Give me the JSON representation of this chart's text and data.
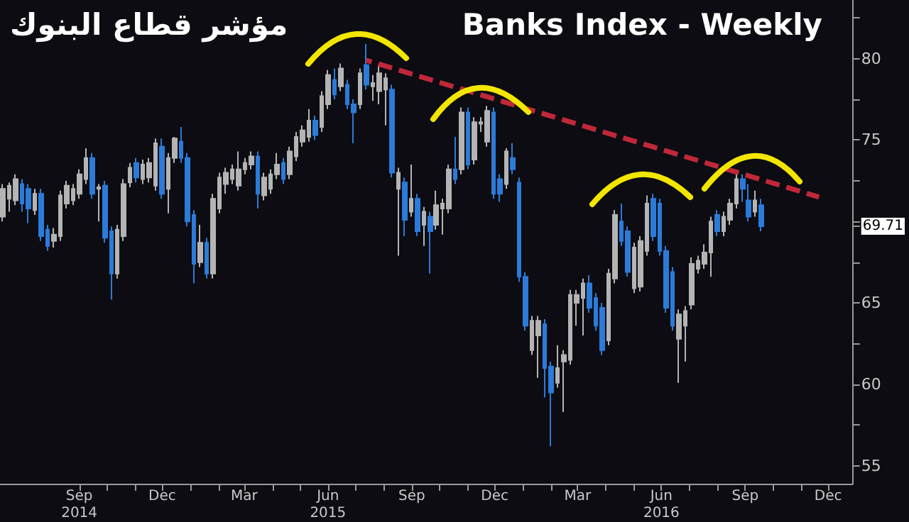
{
  "chart_data": {
    "type": "candlestick",
    "title": "Banks Index - Weekly",
    "subtitle": "مؤشر قطاع البنوك",
    "x": [
      "2014-06-09",
      "2014-06-16",
      "2014-06-23",
      "2014-06-30",
      "2014-07-07",
      "2014-07-14",
      "2014-07-21",
      "2014-07-28",
      "2014-08-04",
      "2014-08-11",
      "2014-08-18",
      "2014-08-25",
      "2014-09-01",
      "2014-09-08",
      "2014-09-15",
      "2014-09-22",
      "2014-09-29",
      "2014-10-06",
      "2014-10-13",
      "2014-10-20",
      "2014-10-27",
      "2014-11-03",
      "2014-11-10",
      "2014-11-17",
      "2014-11-24",
      "2014-12-01",
      "2014-12-08",
      "2014-12-15",
      "2014-12-22",
      "2014-12-29",
      "2015-01-05",
      "2015-01-12",
      "2015-01-19",
      "2015-01-26",
      "2015-02-02",
      "2015-02-09",
      "2015-02-16",
      "2015-02-23",
      "2015-03-02",
      "2015-03-09",
      "2015-03-16",
      "2015-03-23",
      "2015-03-30",
      "2015-04-06",
      "2015-04-13",
      "2015-04-20",
      "2015-04-27",
      "2015-05-04",
      "2015-05-11",
      "2015-05-18",
      "2015-05-25",
      "2015-06-01",
      "2015-06-08",
      "2015-06-15",
      "2015-06-22",
      "2015-06-29",
      "2015-07-06",
      "2015-07-13",
      "2015-07-20",
      "2015-07-27",
      "2015-08-03",
      "2015-08-10",
      "2015-08-17",
      "2015-08-24",
      "2015-08-31",
      "2015-09-07",
      "2015-09-14",
      "2015-09-21",
      "2015-09-28",
      "2015-10-05",
      "2015-10-12",
      "2015-10-19",
      "2015-10-26",
      "2015-11-02",
      "2015-11-09",
      "2015-11-16",
      "2015-11-23",
      "2015-11-30",
      "2015-12-07",
      "2015-12-14",
      "2015-12-21",
      "2015-12-28",
      "2016-01-04",
      "2016-01-11",
      "2016-01-18",
      "2016-01-25",
      "2016-02-01",
      "2016-02-08",
      "2016-02-15",
      "2016-02-22",
      "2016-02-29",
      "2016-03-07",
      "2016-03-14",
      "2016-03-21",
      "2016-03-28",
      "2016-04-04",
      "2016-04-11",
      "2016-04-18",
      "2016-04-25",
      "2016-05-02",
      "2016-05-09",
      "2016-05-16",
      "2016-05-23",
      "2016-05-30",
      "2016-06-06",
      "2016-06-13",
      "2016-06-20",
      "2016-06-27",
      "2016-07-04",
      "2016-07-11",
      "2016-07-18",
      "2016-07-25",
      "2016-08-01",
      "2016-08-08",
      "2016-08-15",
      "2016-08-22",
      "2016-08-29",
      "2016-09-05",
      "2016-09-12",
      "2016-09-19"
    ],
    "ohlc": [
      [
        70.3,
        72.3,
        70.0,
        72.0
      ],
      [
        71.4,
        72.4,
        70.6,
        72.2
      ],
      [
        71.3,
        72.9,
        71.0,
        72.6
      ],
      [
        72.3,
        72.6,
        70.6,
        71.1
      ],
      [
        72.0,
        72.3,
        69.9,
        70.8
      ],
      [
        70.7,
        72.0,
        70.4,
        71.7
      ],
      [
        71.7,
        72.0,
        68.8,
        69.1
      ],
      [
        69.5,
        69.8,
        68.2,
        68.5
      ],
      [
        68.8,
        69.6,
        68.4,
        69.2
      ],
      [
        69.1,
        71.9,
        68.8,
        71.6
      ],
      [
        71.1,
        72.5,
        70.8,
        72.2
      ],
      [
        71.3,
        72.3,
        71.0,
        72.0
      ],
      [
        71.7,
        73.2,
        71.4,
        72.9
      ],
      [
        72.6,
        74.5,
        72.3,
        73.9
      ],
      [
        73.9,
        74.2,
        71.4,
        71.7
      ],
      [
        72.0,
        72.3,
        70.0,
        72.1
      ],
      [
        72.2,
        72.5,
        68.7,
        69.0
      ],
      [
        69.4,
        69.7,
        65.2,
        66.8
      ],
      [
        66.8,
        69.8,
        66.5,
        69.5
      ],
      [
        69.1,
        72.6,
        68.8,
        72.3
      ],
      [
        72.4,
        73.6,
        72.1,
        73.3
      ],
      [
        73.6,
        73.9,
        72.4,
        72.7
      ],
      [
        72.6,
        73.8,
        72.3,
        73.5
      ],
      [
        72.7,
        73.9,
        72.4,
        73.6
      ],
      [
        72.2,
        75.1,
        71.9,
        74.8
      ],
      [
        74.6,
        75.1,
        71.4,
        71.7
      ],
      [
        72.0,
        74.2,
        70.5,
        73.9
      ],
      [
        73.9,
        75.2,
        73.6,
        75.1
      ],
      [
        74.9,
        75.8,
        73.6,
        73.9
      ],
      [
        73.9,
        74.2,
        69.7,
        70.0
      ],
      [
        70.4,
        70.7,
        66.2,
        67.4
      ],
      [
        67.5,
        69.8,
        67.2,
        68.7
      ],
      [
        68.7,
        69.0,
        66.5,
        66.8
      ],
      [
        66.8,
        71.7,
        66.5,
        71.4
      ],
      [
        70.8,
        73.0,
        70.5,
        72.7
      ],
      [
        72.3,
        73.3,
        71.7,
        73.0
      ],
      [
        72.6,
        73.5,
        72.3,
        73.2
      ],
      [
        72.2,
        74.3,
        71.9,
        73.2
      ],
      [
        73.2,
        73.9,
        72.9,
        73.6
      ],
      [
        73.5,
        74.3,
        73.2,
        74.0
      ],
      [
        74.0,
        74.3,
        70.8,
        71.7
      ],
      [
        71.6,
        73.0,
        71.3,
        72.7
      ],
      [
        72.0,
        73.2,
        71.7,
        72.9
      ],
      [
        72.9,
        74.2,
        72.6,
        73.5
      ],
      [
        73.6,
        73.9,
        72.3,
        72.6
      ],
      [
        72.9,
        74.6,
        72.6,
        74.3
      ],
      [
        74.0,
        75.5,
        73.7,
        75.2
      ],
      [
        74.9,
        75.9,
        74.6,
        75.6
      ],
      [
        75.2,
        76.9,
        74.9,
        76.2
      ],
      [
        76.2,
        76.5,
        75.0,
        75.3
      ],
      [
        75.8,
        78.0,
        75.5,
        77.7
      ],
      [
        77.2,
        79.3,
        76.9,
        79.0
      ],
      [
        78.7,
        79.4,
        77.5,
        77.8
      ],
      [
        78.3,
        79.7,
        78.0,
        79.4
      ],
      [
        78.4,
        78.7,
        76.9,
        77.2
      ],
      [
        77.2,
        77.5,
        74.8,
        76.7
      ],
      [
        77.2,
        79.4,
        76.9,
        79.1
      ],
      [
        79.6,
        80.9,
        78.1,
        78.4
      ],
      [
        78.3,
        79.0,
        77.4,
        78.5
      ],
      [
        78.0,
        79.6,
        77.2,
        79.1
      ],
      [
        78.1,
        79.1,
        75.9,
        78.8
      ],
      [
        78.1,
        78.4,
        72.7,
        73.0
      ],
      [
        72.0,
        73.3,
        67.9,
        73.0
      ],
      [
        72.4,
        72.7,
        69.1,
        70.1
      ],
      [
        70.6,
        73.5,
        70.3,
        71.4
      ],
      [
        71.4,
        71.7,
        69.1,
        69.4
      ],
      [
        69.8,
        70.9,
        68.5,
        70.6
      ],
      [
        70.3,
        70.6,
        66.8,
        69.4
      ],
      [
        69.8,
        71.9,
        69.5,
        71.0
      ],
      [
        70.8,
        71.4,
        69.2,
        71.1
      ],
      [
        70.8,
        73.5,
        70.5,
        73.2
      ],
      [
        73.2,
        75.2,
        72.3,
        72.6
      ],
      [
        73.2,
        77.0,
        72.9,
        76.7
      ],
      [
        76.7,
        77.0,
        73.2,
        73.5
      ],
      [
        73.8,
        76.4,
        73.5,
        76.1
      ],
      [
        76.0,
        76.4,
        75.5,
        76.1
      ],
      [
        74.9,
        77.1,
        74.6,
        76.8
      ],
      [
        76.7,
        77.0,
        71.4,
        71.7
      ],
      [
        72.6,
        72.9,
        71.2,
        71.7
      ],
      [
        72.3,
        74.5,
        72.0,
        74.3
      ],
      [
        73.9,
        74.8,
        72.9,
        73.2
      ],
      [
        72.4,
        72.7,
        66.3,
        66.6
      ],
      [
        66.6,
        66.9,
        63.3,
        63.6
      ],
      [
        62.1,
        64.2,
        61.8,
        63.9
      ],
      [
        63.0,
        64.2,
        60.4,
        63.9
      ],
      [
        63.7,
        64.0,
        59.2,
        61.0
      ],
      [
        61.1,
        61.4,
        56.2,
        59.5
      ],
      [
        60.1,
        62.4,
        59.8,
        61.0
      ],
      [
        61.4,
        62.1,
        58.3,
        61.8
      ],
      [
        61.5,
        65.8,
        61.2,
        65.5
      ],
      [
        65.0,
        65.8,
        63.6,
        65.5
      ],
      [
        65.3,
        66.5,
        63.0,
        66.2
      ],
      [
        66.2,
        66.7,
        64.4,
        64.7
      ],
      [
        65.3,
        65.6,
        63.3,
        63.6
      ],
      [
        64.7,
        65.0,
        61.8,
        62.1
      ],
      [
        62.7,
        67.1,
        62.4,
        66.8
      ],
      [
        66.5,
        70.7,
        66.2,
        70.4
      ],
      [
        70.0,
        71.1,
        68.5,
        68.8
      ],
      [
        69.4,
        69.7,
        66.6,
        66.9
      ],
      [
        65.9,
        68.7,
        65.6,
        68.4
      ],
      [
        66.0,
        69.1,
        65.7,
        68.8
      ],
      [
        68.2,
        71.6,
        67.9,
        71.1
      ],
      [
        71.4,
        71.7,
        68.8,
        69.1
      ],
      [
        71.1,
        71.4,
        67.9,
        68.2
      ],
      [
        68.2,
        68.5,
        64.4,
        64.7
      ],
      [
        66.9,
        67.2,
        63.3,
        63.6
      ],
      [
        62.8,
        64.6,
        60.1,
        64.3
      ],
      [
        63.6,
        64.8,
        61.4,
        64.5
      ],
      [
        64.9,
        67.8,
        64.6,
        67.4
      ],
      [
        67.1,
        67.9,
        66.8,
        67.6
      ],
      [
        67.4,
        68.6,
        67.1,
        68.1
      ],
      [
        68.1,
        70.3,
        66.6,
        70.0
      ],
      [
        70.4,
        70.7,
        69.1,
        69.4
      ],
      [
        69.4,
        70.6,
        69.1,
        70.3
      ],
      [
        70.1,
        71.4,
        69.8,
        71.1
      ],
      [
        71.1,
        72.9,
        70.8,
        72.6
      ],
      [
        72.6,
        72.9,
        71.2,
        72.0
      ],
      [
        71.3,
        72.3,
        70.0,
        70.3
      ],
      [
        70.6,
        71.9,
        70.3,
        71.3
      ],
      [
        71.0,
        71.4,
        69.4,
        69.71
      ]
    ],
    "colors": [
      "#b4b4b4",
      "#b4b4b4",
      "#b4b4b4",
      "#2b7bd9",
      "#2b7bd9",
      "#b4b4b4",
      "#2b7bd9",
      "#2b7bd9",
      "#b4b4b4",
      "#b4b4b4",
      "#b4b4b4",
      "#b4b4b4",
      "#b4b4b4",
      "#b4b4b4",
      "#2b7bd9",
      "#b4b4b4",
      "#2b7bd9",
      "#2b7bd9",
      "#b4b4b4",
      "#b4b4b4",
      "#b4b4b4",
      "#2b7bd9",
      "#b4b4b4",
      "#b4b4b4",
      "#b4b4b4",
      "#2b7bd9",
      "#b4b4b4",
      "#b4b4b4",
      "#2b7bd9",
      "#2b7bd9",
      "#2b7bd9",
      "#b4b4b4",
      "#2b7bd9",
      "#b4b4b4",
      "#b4b4b4",
      "#b4b4b4",
      "#b4b4b4",
      "#b4b4b4",
      "#b4b4b4",
      "#b4b4b4",
      "#2b7bd9",
      "#b4b4b4",
      "#b4b4b4",
      "#b4b4b4",
      "#2b7bd9",
      "#b4b4b4",
      "#b4b4b4",
      "#b4b4b4",
      "#b4b4b4",
      "#2b7bd9",
      "#b4b4b4",
      "#b4b4b4",
      "#2b7bd9",
      "#b4b4b4",
      "#2b7bd9",
      "#2b7bd9",
      "#b4b4b4",
      "#2b7bd9",
      "#b4b4b4",
      "#b4b4b4",
      "#b4b4b4",
      "#2b7bd9",
      "#b4b4b4",
      "#2b7bd9",
      "#b4b4b4",
      "#2b7bd9",
      "#b4b4b4",
      "#2b7bd9",
      "#b4b4b4",
      "#b4b4b4",
      "#b4b4b4",
      "#2b7bd9",
      "#b4b4b4",
      "#2b7bd9",
      "#b4b4b4",
      "#b4b4b4",
      "#b4b4b4",
      "#2b7bd9",
      "#2b7bd9",
      "#b4b4b4",
      "#2b7bd9",
      "#2b7bd9",
      "#2b7bd9",
      "#b4b4b4",
      "#b4b4b4",
      "#2b7bd9",
      "#2b7bd9",
      "#b4b4b4",
      "#b4b4b4",
      "#b4b4b4",
      "#b4b4b4",
      "#b4b4b4",
      "#2b7bd9",
      "#2b7bd9",
      "#2b7bd9",
      "#b4b4b4",
      "#b4b4b4",
      "#2b7bd9",
      "#2b7bd9",
      "#b4b4b4",
      "#b4b4b4",
      "#b4b4b4",
      "#2b7bd9",
      "#2b7bd9",
      "#2b7bd9",
      "#2b7bd9",
      "#b4b4b4",
      "#b4b4b4",
      "#b4b4b4",
      "#b4b4b4",
      "#b4b4b4",
      "#b4b4b4",
      "#2b7bd9",
      "#b4b4b4",
      "#b4b4b4",
      "#b4b4b4",
      "#2b7bd9",
      "#2b7bd9",
      "#b4b4b4",
      "#2b7bd9"
    ],
    "series": [
      {
        "type": "line",
        "x": [
          "2015-07-13",
          "2016-11-21"
        ],
        "values": [
          79.9,
          71.5
        ],
        "color": "#c0283a",
        "line_style": "dashed",
        "marker": "none"
      }
    ],
    "xlim": [
      "2014-06-06",
      "2016-12-28"
    ],
    "xticks": [
      {
        "value": "2014-09-01",
        "label": "Sep\n2014"
      },
      {
        "value": "2014-10-01",
        "label": null
      },
      {
        "value": "2014-11-01",
        "label": null
      },
      {
        "value": "2014-12-01",
        "label": "Dec"
      },
      {
        "value": "2015-01-01",
        "label": null
      },
      {
        "value": "2015-02-01",
        "label": null
      },
      {
        "value": "2015-03-01",
        "label": "Mar"
      },
      {
        "value": "2015-04-01",
        "label": null
      },
      {
        "value": "2015-05-01",
        "label": null
      },
      {
        "value": "2015-06-01",
        "label": "Jun\n2015"
      },
      {
        "value": "2015-07-01",
        "label": null
      },
      {
        "value": "2015-08-01",
        "label": null
      },
      {
        "value": "2015-09-01",
        "label": "Sep"
      },
      {
        "value": "2015-10-01",
        "label": null
      },
      {
        "value": "2015-11-01",
        "label": null
      },
      {
        "value": "2015-12-01",
        "label": "Dec"
      },
      {
        "value": "2016-01-01",
        "label": null
      },
      {
        "value": "2016-02-01",
        "label": null
      },
      {
        "value": "2016-03-01",
        "label": "Mar"
      },
      {
        "value": "2016-04-01",
        "label": null
      },
      {
        "value": "2016-05-01",
        "label": null
      },
      {
        "value": "2016-06-01",
        "label": "Jun\n2016"
      },
      {
        "value": "2016-07-01",
        "label": null
      },
      {
        "value": "2016-08-01",
        "label": null
      },
      {
        "value": "2016-09-01",
        "label": "Sep"
      },
      {
        "value": "2016-10-01",
        "label": null
      },
      {
        "value": "2016-11-01",
        "label": null
      },
      {
        "value": "2016-12-01",
        "label": "Dec"
      }
    ],
    "ylim": [
      53.9,
      83.6
    ],
    "yticks": [
      55,
      {
        "value": 57.5,
        "label": null
      },
      60,
      {
        "value": 62.5,
        "label": null
      },
      65,
      {
        "value": 67.5,
        "label": null
      },
      69.71,
      {
        "value": 70,
        "label": null
      },
      {
        "value": 72.5,
        "label": null
      },
      75,
      {
        "value": 77.5,
        "label": null
      },
      80,
      {
        "value": 82.5,
        "label": null
      }
    ],
    "grid": false
  }
}
